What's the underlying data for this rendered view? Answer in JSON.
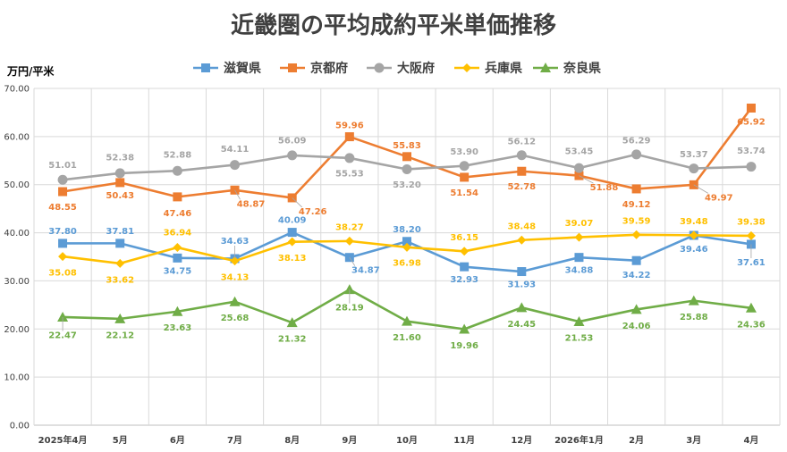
{
  "chart_data": {
    "type": "line",
    "title": "近畿圏の平均成約平米単価推移",
    "ylabel": "万円/平米",
    "xlabel": "",
    "ylim": [
      0,
      70
    ],
    "y_ticks": [
      "0.00",
      "10.00",
      "20.00",
      "30.00",
      "40.00",
      "50.00",
      "60.00",
      "70.00"
    ],
    "grid": true,
    "legend_position": "top",
    "categories": [
      "2025年4月",
      "5月",
      "6月",
      "7月",
      "8月",
      "9月",
      "10月",
      "11月",
      "12月",
      "2026年1月",
      "2月",
      "3月",
      "4月"
    ],
    "series": [
      {
        "name": "滋賀県",
        "color": "#5B9BD5",
        "marker": "square",
        "values": [
          37.8,
          37.81,
          34.75,
          34.63,
          40.09,
          34.87,
          38.2,
          32.93,
          31.93,
          34.88,
          34.22,
          39.46,
          37.61
        ],
        "labels": [
          "37.80",
          "37.81",
          "34.75",
          "34.63",
          "40.09",
          "34.87",
          "38.20",
          "32.93",
          "31.93",
          "34.88",
          "34.22",
          "39.46",
          "37.61"
        ]
      },
      {
        "name": "京都府",
        "color": "#ED7D31",
        "marker": "square",
        "values": [
          48.55,
          50.43,
          47.46,
          48.87,
          47.26,
          59.96,
          55.83,
          51.54,
          52.78,
          51.88,
          49.12,
          49.97,
          65.92
        ],
        "labels": [
          "48.55",
          "50.43",
          "47.46",
          "48.87",
          "47.26",
          "59.96",
          "55.83",
          "51.54",
          "52.78",
          "51.88",
          "49.12",
          "49.97",
          "65.92"
        ]
      },
      {
        "name": "大阪府",
        "color": "#A5A5A5",
        "marker": "circle",
        "values": [
          51.01,
          52.38,
          52.88,
          54.11,
          56.09,
          55.53,
          53.2,
          53.9,
          56.12,
          53.45,
          56.29,
          53.37,
          53.74
        ],
        "labels": [
          "51.01",
          "52.38",
          "52.88",
          "54.11",
          "56.09",
          "55.53",
          "53.20",
          "53.90",
          "56.12",
          "53.45",
          "56.29",
          "53.37",
          "53.74"
        ]
      },
      {
        "name": "兵庫県",
        "color": "#FFC000",
        "marker": "diamond",
        "values": [
          35.08,
          33.62,
          36.94,
          34.13,
          38.13,
          38.27,
          36.98,
          36.15,
          38.48,
          39.07,
          39.59,
          39.48,
          39.38
        ],
        "labels": [
          "35.08",
          "33.62",
          "36.94",
          "34.13",
          "38.13",
          "38.27",
          "36.98",
          "36.15",
          "38.48",
          "39.07",
          "39.59",
          "39.48",
          "39.38"
        ]
      },
      {
        "name": "奈良県",
        "color": "#70AD47",
        "marker": "triangle",
        "values": [
          22.47,
          22.12,
          23.63,
          25.68,
          21.32,
          28.19,
          21.6,
          19.96,
          24.45,
          21.53,
          24.06,
          25.88,
          24.36
        ],
        "labels": [
          "22.47",
          "22.12",
          "23.63",
          "25.68",
          "21.32",
          "28.19",
          "21.60",
          "19.96",
          "24.45",
          "21.53",
          "24.06",
          "25.88",
          "24.36"
        ]
      }
    ]
  }
}
